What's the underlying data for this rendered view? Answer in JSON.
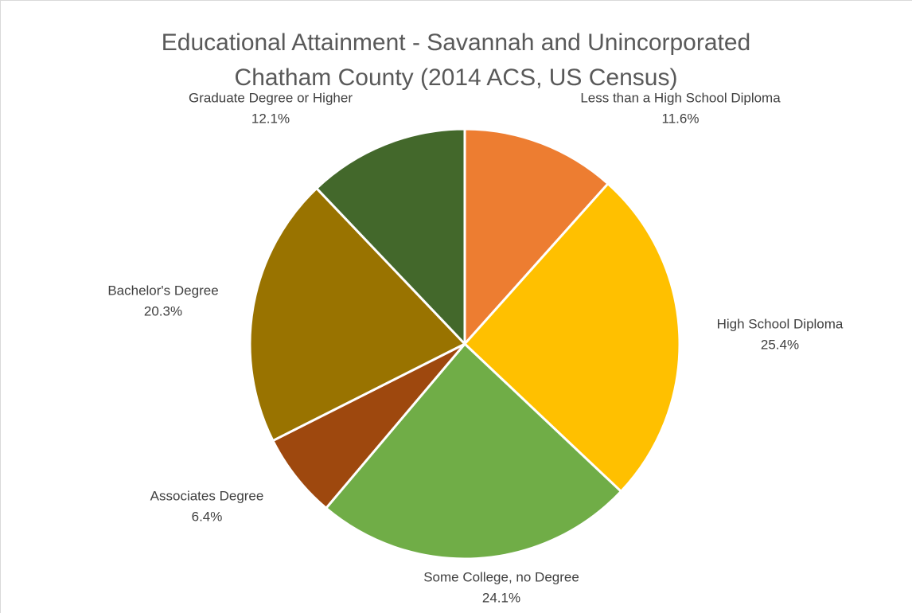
{
  "chart_data": {
    "type": "pie",
    "title": "Educational Attainment - Savannah and Unincorporated Chatham County (2014 ACS, US Census)",
    "categories": [
      "Less than a High School Diploma",
      "High School Diploma",
      "Some College, no Degree",
      "Associates Degree",
      "Bachelor's Degree",
      "Graduate Degree or Higher"
    ],
    "values": [
      11.6,
      25.4,
      24.1,
      6.4,
      20.3,
      12.1
    ],
    "value_labels": [
      "11.6%",
      "25.4%",
      "24.1%",
      "6.4%",
      "20.3%",
      "12.1%"
    ],
    "colors": [
      "#ed7d31",
      "#ffc000",
      "#70ad47",
      "#9e480e",
      "#997300",
      "#43682b"
    ]
  }
}
